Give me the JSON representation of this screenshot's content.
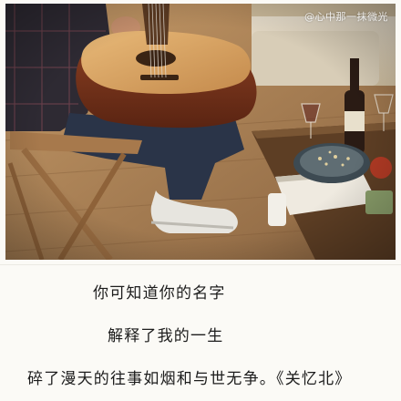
{
  "photo": {
    "watermark": "@心中那一抹微光"
  },
  "poem": {
    "lines": [
      "你可知道你的名字",
      "解释了我的一生",
      "碎了漫天的往事如烟和与世无争。《关忆北》"
    ]
  }
}
